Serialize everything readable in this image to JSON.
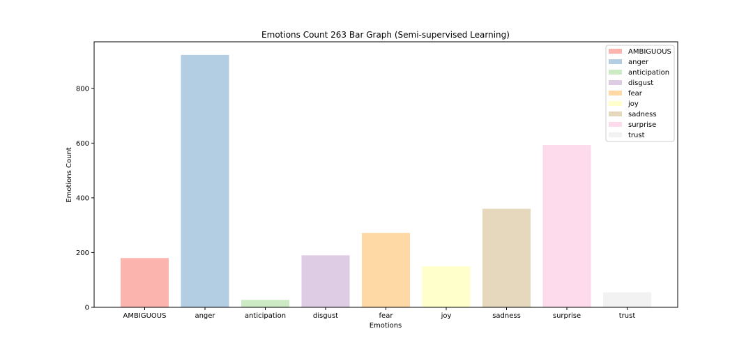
{
  "chart_data": {
    "type": "bar",
    "title": "Emotions Count 263 Bar Graph (Semi-supervised Learning)",
    "xlabel": "Emotions",
    "ylabel": "Emotions Count",
    "ylim": [
      0,
      970
    ],
    "yticks": [
      0,
      200,
      400,
      600,
      800
    ],
    "grid": false,
    "legend_position": "top-right",
    "categories": [
      "AMBIGUOUS",
      "anger",
      "anticipation",
      "disgust",
      "fear",
      "joy",
      "sadness",
      "surprise",
      "trust"
    ],
    "values": [
      180,
      922,
      27,
      190,
      272,
      150,
      360,
      593,
      55
    ],
    "colors": [
      "#fbb4ae",
      "#b3cde3",
      "#ccebc5",
      "#decbe4",
      "#fed9a6",
      "#ffffcc",
      "#e5d8bd",
      "#fddaec",
      "#f2f2f2"
    ]
  }
}
